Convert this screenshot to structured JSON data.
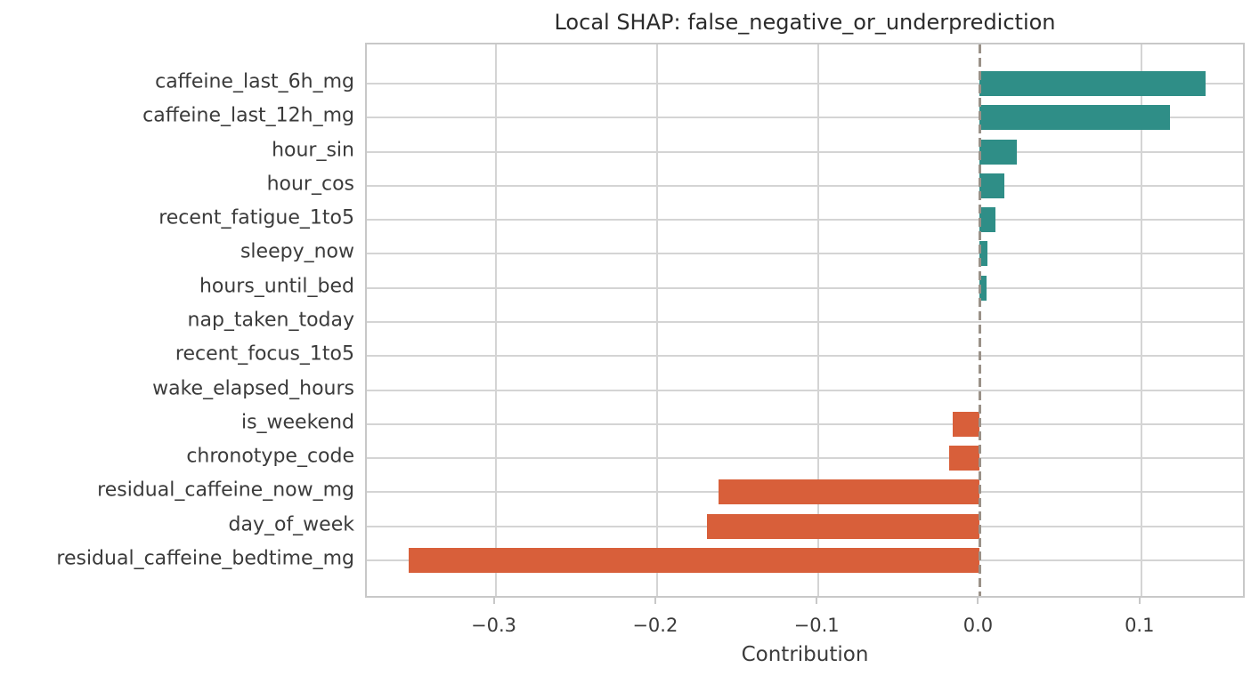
{
  "chart_data": {
    "type": "bar",
    "orientation": "horizontal",
    "title": "Local SHAP: false_negative_or_underprediction",
    "xlabel": "Contribution",
    "ylabel": "",
    "categories": [
      "caffeine_last_6h_mg",
      "caffeine_last_12h_mg",
      "hour_sin",
      "hour_cos",
      "recent_fatigue_1to5",
      "sleepy_now",
      "hours_until_bed",
      "nap_taken_today",
      "recent_focus_1to5",
      "wake_elapsed_hours",
      "is_weekend",
      "chronotype_code",
      "residual_caffeine_now_mg",
      "day_of_week",
      "residual_caffeine_bedtime_mg"
    ],
    "values": [
      0.14,
      0.118,
      0.023,
      0.015,
      0.0095,
      0.0045,
      0.004,
      0.0,
      0.0,
      0.0,
      -0.017,
      -0.019,
      -0.162,
      -0.169,
      -0.354
    ],
    "xlim": [
      -0.3797,
      0.1652
    ],
    "x_ticks": [
      -0.3,
      -0.2,
      -0.1,
      0.0,
      0.1
    ],
    "x_tick_labels": [
      "−0.3",
      "−0.2",
      "−0.1",
      "0.0",
      "0.1"
    ],
    "grid": true,
    "legend": "none",
    "colors": {
      "positive_bar": "#2f8e87",
      "negative_bar": "#d85f3a",
      "zero_line": "#9a9188",
      "gridline": "#d4d4d4",
      "spine": "#c8c8c8",
      "text": "#3b3b3b",
      "title_text": "#2b2b2b",
      "background": "#ffffff"
    },
    "zero_line_style": "dashed"
  }
}
